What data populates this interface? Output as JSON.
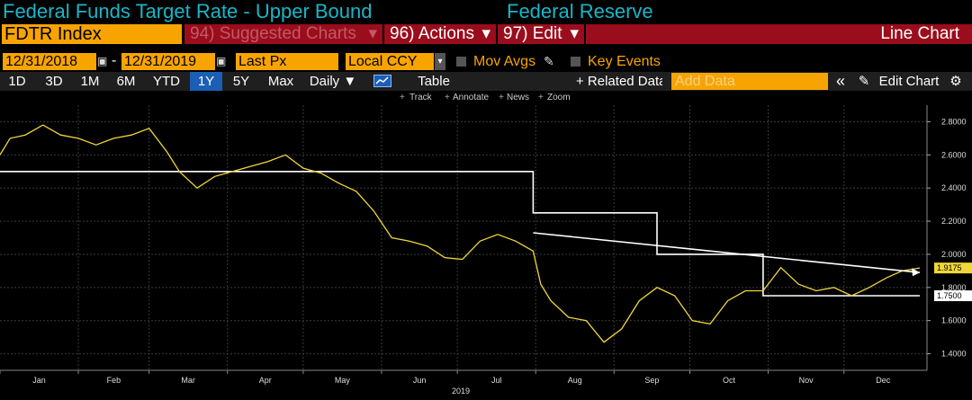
{
  "title": {
    "left": "Federal Funds Target Rate - Upper Bound",
    "right": "Federal Reserve"
  },
  "toolbar": {
    "ticker": "FDTR Index",
    "suggested": "94) Suggested Charts",
    "actions": "96) Actions",
    "edit": "97) Edit",
    "chart_type": "Line Chart",
    "dropdown_arrow": "▾",
    "date_start": "12/31/2018",
    "date_sep": "-",
    "date_end": "12/31/2019",
    "field": "Last Px",
    "currency": "Local CCY",
    "mov_avgs": "Mov Avgs",
    "key_events": "Key Events",
    "periods": [
      "1D",
      "3D",
      "1M",
      "6M",
      "YTD",
      "1Y",
      "5Y",
      "Max"
    ],
    "active_period": "1Y",
    "frequency": "Daily ▼",
    "table": "Table",
    "related": "+ Related Data",
    "add_data_placeholder": "Add Data",
    "collapse": "«",
    "edit_chart": "Edit Chart",
    "gear": "⚙",
    "plus": "+"
  },
  "tools": {
    "track": "Track",
    "annotate": "Annotate",
    "news": "News",
    "zoom": "Zoom"
  },
  "colors": {
    "yield_line": "#f0d63a",
    "rate_line": "#ffffff",
    "title": "#18b7c9",
    "accent": "#f8a400",
    "menu": "#9a0d1c"
  },
  "chart_data": {
    "type": "line",
    "x_label": "2019",
    "ylim": [
      1.3,
      2.9
    ],
    "y_ticks": [
      "2.8000",
      "2.6000",
      "2.4000",
      "2.2000",
      "2.0000",
      "1.8000",
      "1.6000",
      "1.4000"
    ],
    "months": [
      "Jan",
      "Feb",
      "Mar",
      "Apr",
      "May",
      "Jun",
      "Jul",
      "Aug",
      "Sep",
      "Oct",
      "Nov",
      "Dec"
    ],
    "last_labels": [
      {
        "value": "1.9175",
        "bg": "#f0d63a"
      },
      {
        "value": "1.7500",
        "bg": "#ffffff"
      }
    ],
    "series": [
      {
        "color": "#ffffff",
        "x": [
          "2019-01-01",
          "2019-07-31",
          "2019-07-31",
          "2019-09-18",
          "2019-09-18",
          "2019-10-30",
          "2019-10-30",
          "2019-12-31"
        ],
        "y": [
          2.5,
          2.5,
          2.25,
          2.25,
          2.0,
          2.0,
          1.75,
          1.75
        ]
      },
      {
        "color": "#f0d63a",
        "x": [
          "2019-01-01",
          "2019-01-05",
          "2019-01-11",
          "2019-01-18",
          "2019-01-25",
          "2019-02-01",
          "2019-02-08",
          "2019-02-15",
          "2019-02-22",
          "2019-03-01",
          "2019-03-08",
          "2019-03-13",
          "2019-03-20",
          "2019-03-27",
          "2019-04-03",
          "2019-04-10",
          "2019-04-17",
          "2019-04-24",
          "2019-05-01",
          "2019-05-08",
          "2019-05-15",
          "2019-05-22",
          "2019-05-29",
          "2019-06-05",
          "2019-06-12",
          "2019-06-19",
          "2019-06-26",
          "2019-07-03",
          "2019-07-10",
          "2019-07-17",
          "2019-07-24",
          "2019-07-31",
          "2019-08-03",
          "2019-08-07",
          "2019-08-14",
          "2019-08-21",
          "2019-08-28",
          "2019-09-04",
          "2019-09-11",
          "2019-09-18",
          "2019-09-25",
          "2019-10-02",
          "2019-10-09",
          "2019-10-16",
          "2019-10-23",
          "2019-10-30",
          "2019-11-06",
          "2019-11-13",
          "2019-11-20",
          "2019-11-27",
          "2019-12-04",
          "2019-12-11",
          "2019-12-18",
          "2019-12-24",
          "2019-12-31"
        ],
        "y": [
          2.6,
          2.7,
          2.72,
          2.78,
          2.72,
          2.7,
          2.66,
          2.7,
          2.72,
          2.76,
          2.62,
          2.5,
          2.4,
          2.47,
          2.5,
          2.53,
          2.56,
          2.6,
          2.52,
          2.49,
          2.43,
          2.38,
          2.26,
          2.1,
          2.08,
          2.05,
          1.98,
          1.97,
          2.08,
          2.12,
          2.08,
          2.02,
          1.82,
          1.72,
          1.62,
          1.6,
          1.47,
          1.55,
          1.72,
          1.8,
          1.75,
          1.6,
          1.58,
          1.72,
          1.78,
          1.78,
          1.92,
          1.82,
          1.78,
          1.8,
          1.75,
          1.8,
          1.86,
          1.9,
          1.9175
        ]
      },
      {
        "color": "#ffffff",
        "x": [
          "2019-07-31",
          "2019-12-31"
        ],
        "y": [
          2.13,
          1.89
        ]
      }
    ]
  }
}
